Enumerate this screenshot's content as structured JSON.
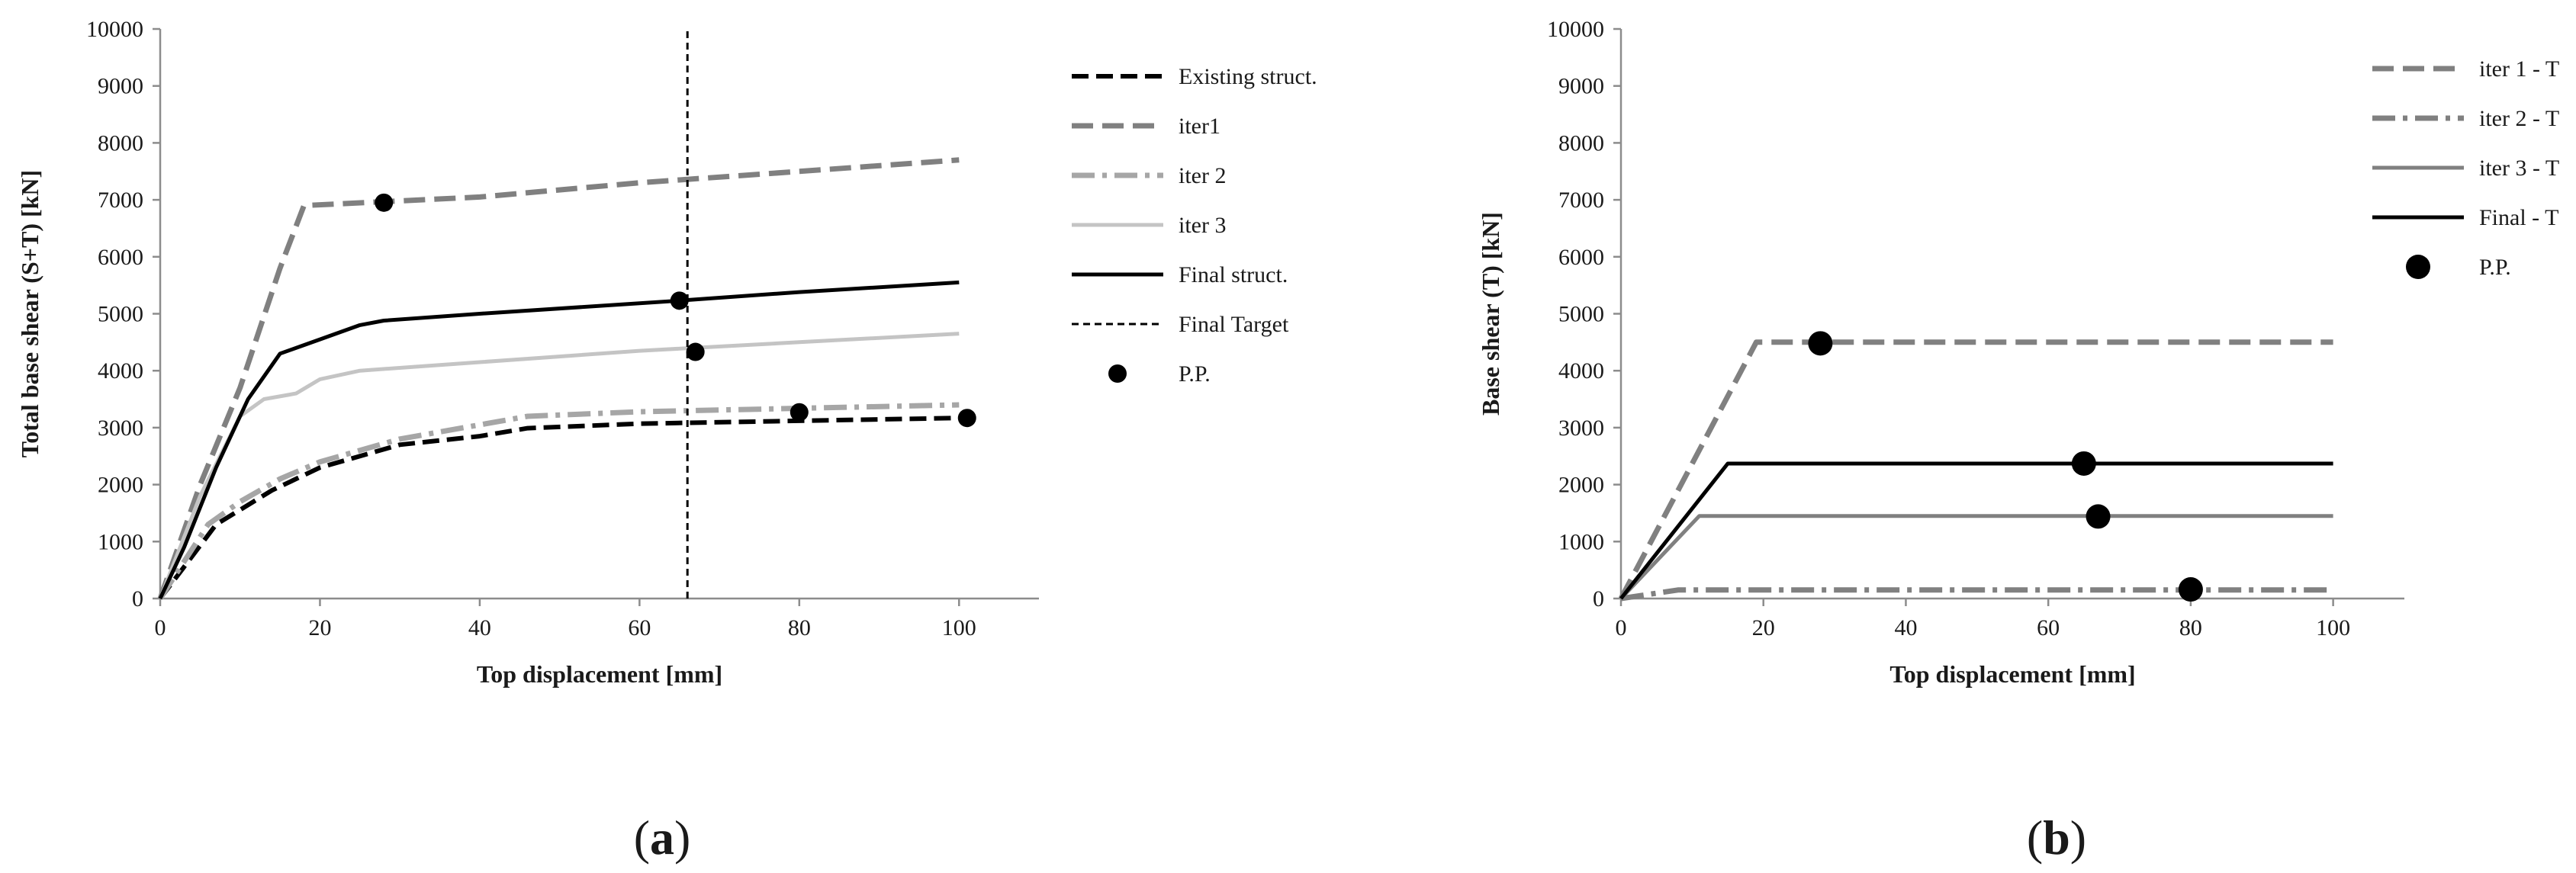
{
  "panels": [
    {
      "caption_letter": "a",
      "chart_data": {
        "type": "line",
        "xlabel": "Top displacement [mm]",
        "ylabel": "Total base shear (S+T) [kN]",
        "xlim": [
          0,
          110
        ],
        "ylim": [
          0,
          10000
        ],
        "xticks": [
          0,
          20,
          40,
          60,
          80,
          100
        ],
        "yticks": [
          0,
          1000,
          2000,
          3000,
          4000,
          5000,
          6000,
          7000,
          8000,
          9000,
          10000
        ],
        "grid": false,
        "legend_position": "right",
        "series": [
          {
            "name": "Existing struct.",
            "color": "#000000",
            "dash": "22 10",
            "width": 6,
            "points": [
              [
                0,
                0
              ],
              [
                7,
                1300
              ],
              [
                14,
                1900
              ],
              [
                20,
                2300
              ],
              [
                30,
                2700
              ],
              [
                40,
                2850
              ],
              [
                46,
                2990
              ],
              [
                60,
                3070
              ],
              [
                80,
                3120
              ],
              [
                100,
                3170
              ]
            ]
          },
          {
            "name": "iter1",
            "color": "#808080",
            "dash": "28 12",
            "width": 7,
            "points": [
              [
                0,
                0
              ],
              [
                5,
                2000
              ],
              [
                10,
                3700
              ],
              [
                15,
                5800
              ],
              [
                18,
                6900
              ],
              [
                40,
                7050
              ],
              [
                60,
                7300
              ],
              [
                80,
                7500
              ],
              [
                100,
                7700
              ]
            ]
          },
          {
            "name": "iter 2",
            "color": "#a6a6a6",
            "dash": "30 10 6 10",
            "width": 7,
            "points": [
              [
                0,
                0
              ],
              [
                6,
                1300
              ],
              [
                10,
                1700
              ],
              [
                15,
                2100
              ],
              [
                20,
                2400
              ],
              [
                30,
                2800
              ],
              [
                40,
                3050
              ],
              [
                46,
                3200
              ],
              [
                60,
                3280
              ],
              [
                80,
                3340
              ],
              [
                100,
                3400
              ]
            ]
          },
          {
            "name": "iter 3",
            "color": "#c4c4c4",
            "dash": "",
            "width": 5,
            "points": [
              [
                0,
                0
              ],
              [
                5,
                1800
              ],
              [
                10,
                3200
              ],
              [
                13,
                3500
              ],
              [
                17,
                3600
              ],
              [
                20,
                3850
              ],
              [
                25,
                4000
              ],
              [
                40,
                4150
              ],
              [
                60,
                4350
              ],
              [
                80,
                4500
              ],
              [
                100,
                4650
              ]
            ]
          },
          {
            "name": "Final struct.",
            "color": "#000000",
            "dash": "",
            "width": 5,
            "points": [
              [
                0,
                0
              ],
              [
                3,
                900
              ],
              [
                7,
                2300
              ],
              [
                11,
                3500
              ],
              [
                15,
                4300
              ],
              [
                18,
                4450
              ],
              [
                20,
                4550
              ],
              [
                22,
                4650
              ],
              [
                25,
                4800
              ],
              [
                28,
                4880
              ],
              [
                40,
                5000
              ],
              [
                65,
                5230
              ],
              [
                80,
                5380
              ],
              [
                100,
                5550
              ]
            ]
          },
          {
            "name": "Final Target",
            "color": "#000000",
            "dash": "9 6",
            "width": 3,
            "points": [
              [
                66,
                0
              ],
              [
                66,
                10000
              ]
            ]
          }
        ],
        "performance_points": {
          "name": "P.P.",
          "color": "#000000",
          "points": [
            [
              28,
              6950
            ],
            [
              65,
              5230
            ],
            [
              67,
              4330
            ],
            [
              80,
              3270
            ],
            [
              101,
              3170
            ]
          ]
        }
      }
    },
    {
      "caption_letter": "b",
      "chart_data": {
        "type": "line",
        "xlabel": "Top displacement [mm]",
        "ylabel": "Base shear (T) [kN]",
        "xlim": [
          0,
          110
        ],
        "ylim": [
          0,
          10000
        ],
        "xticks": [
          0,
          20,
          40,
          60,
          80,
          100
        ],
        "yticks": [
          0,
          1000,
          2000,
          3000,
          4000,
          5000,
          6000,
          7000,
          8000,
          9000,
          10000
        ],
        "grid": false,
        "legend_position": "top-right",
        "series": [
          {
            "name": "iter 1 - T",
            "color": "#808080",
            "dash": "28 12",
            "width": 7,
            "points": [
              [
                0,
                0
              ],
              [
                19,
                4500
              ],
              [
                100,
                4500
              ]
            ]
          },
          {
            "name": "iter 2 - T",
            "color": "#808080",
            "dash": "30 10 6 10",
            "width": 7,
            "points": [
              [
                0,
                0
              ],
              [
                8,
                150
              ],
              [
                100,
                150
              ]
            ]
          },
          {
            "name": "iter 3 - T",
            "color": "#808080",
            "dash": "",
            "width": 5,
            "points": [
              [
                0,
                0
              ],
              [
                11,
                1450
              ],
              [
                100,
                1450
              ]
            ]
          },
          {
            "name": "Final - T",
            "color": "#000000",
            "dash": "",
            "width": 5,
            "points": [
              [
                0,
                0
              ],
              [
                15,
                2370
              ],
              [
                100,
                2370
              ]
            ]
          }
        ],
        "performance_points": {
          "name": "P.P.",
          "color": "#000000",
          "points": [
            [
              28,
              4480
            ],
            [
              65,
              2370
            ],
            [
              67,
              1440
            ],
            [
              80,
              160
            ]
          ]
        }
      }
    }
  ]
}
